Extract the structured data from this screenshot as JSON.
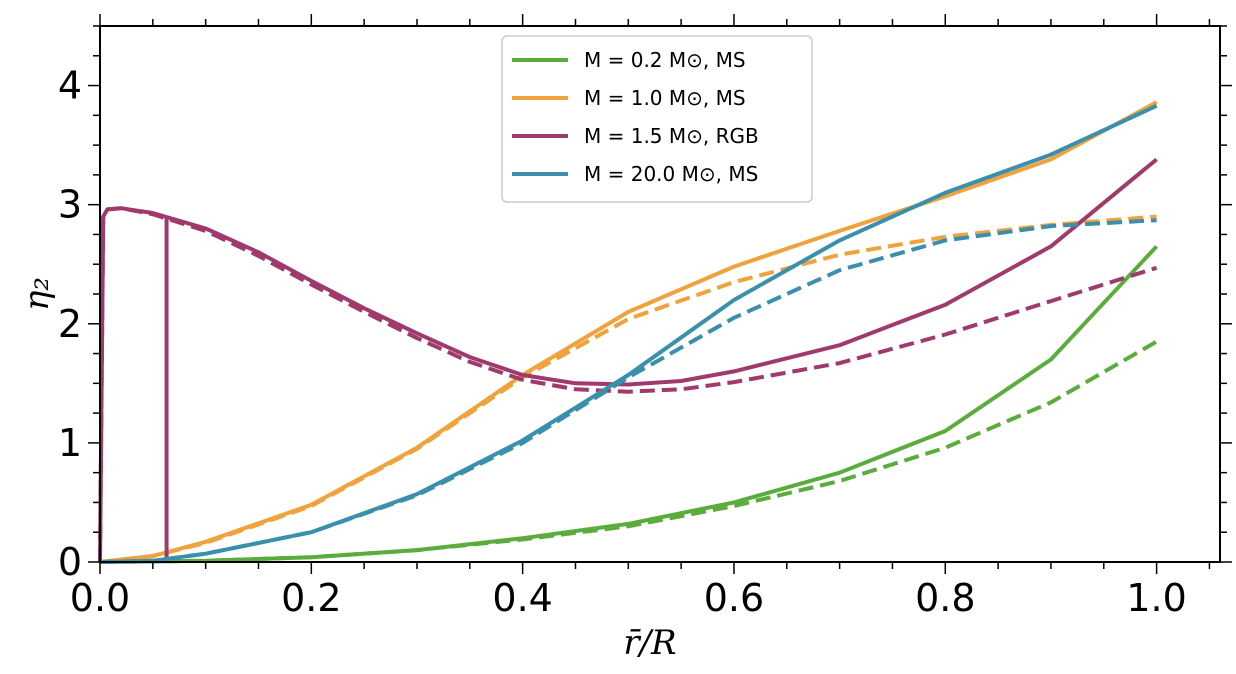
{
  "chart_data": {
    "type": "line",
    "xlabel": "r̄/R",
    "ylabel": "η₂",
    "xlim": [
      0.0,
      1.06
    ],
    "ylim": [
      0.0,
      4.5
    ],
    "x_ticks": [
      "0.0",
      "0.2",
      "0.4",
      "0.6",
      "0.8",
      "1.0"
    ],
    "y_ticks": [
      "0",
      "1",
      "2",
      "3",
      "4"
    ],
    "grid": false,
    "legend_position": "top-center",
    "series": [
      {
        "name": "M = 0.2 M⊙, MS",
        "color": "#5aad3c",
        "solid": {
          "x": [
            0.0,
            0.1,
            0.2,
            0.3,
            0.4,
            0.5,
            0.6,
            0.7,
            0.8,
            0.9,
            1.0
          ],
          "y": [
            0.0,
            0.01,
            0.04,
            0.1,
            0.2,
            0.32,
            0.5,
            0.75,
            1.1,
            1.7,
            2.65
          ]
        },
        "dashed": {
          "x": [
            0.0,
            0.1,
            0.2,
            0.3,
            0.4,
            0.5,
            0.6,
            0.7,
            0.8,
            0.9,
            1.0
          ],
          "y": [
            0.0,
            0.01,
            0.04,
            0.1,
            0.19,
            0.3,
            0.47,
            0.68,
            0.96,
            1.34,
            1.85
          ]
        }
      },
      {
        "name": "M = 1.0 M⊙, MS",
        "color": "#f0a23c",
        "solid": {
          "x": [
            0.0,
            0.05,
            0.1,
            0.2,
            0.3,
            0.4,
            0.5,
            0.6,
            0.7,
            0.8,
            0.9,
            1.0
          ],
          "y": [
            0.0,
            0.05,
            0.17,
            0.48,
            0.96,
            1.57,
            2.1,
            2.48,
            2.78,
            3.07,
            3.38,
            3.86
          ]
        },
        "dashed": {
          "x": [
            0.0,
            0.05,
            0.1,
            0.2,
            0.3,
            0.4,
            0.5,
            0.6,
            0.7,
            0.8,
            0.9,
            1.0
          ],
          "y": [
            0.0,
            0.05,
            0.16,
            0.47,
            0.95,
            1.55,
            2.04,
            2.35,
            2.58,
            2.73,
            2.83,
            2.9
          ]
        }
      },
      {
        "name": "M = 1.5 M⊙, RGB",
        "color": "#a03a6c",
        "solid": {
          "x": [
            0.0,
            0.003,
            0.007,
            0.02,
            0.05,
            0.1,
            0.15,
            0.2,
            0.25,
            0.3,
            0.35,
            0.4,
            0.45,
            0.5,
            0.55,
            0.6,
            0.7,
            0.8,
            0.9,
            1.0
          ],
          "y": [
            0.0,
            2.9,
            2.96,
            2.97,
            2.93,
            2.8,
            2.6,
            2.36,
            2.13,
            1.92,
            1.72,
            1.57,
            1.5,
            1.49,
            1.52,
            1.6,
            1.82,
            2.16,
            2.65,
            3.38
          ]
        },
        "dashed": {
          "x": [
            0.0,
            0.003,
            0.007,
            0.02,
            0.05,
            0.1,
            0.15,
            0.2,
            0.25,
            0.3,
            0.35,
            0.4,
            0.45,
            0.5,
            0.55,
            0.6,
            0.7,
            0.8,
            0.9,
            1.0
          ],
          "y": [
            0.0,
            2.9,
            2.96,
            2.97,
            2.92,
            2.78,
            2.57,
            2.33,
            2.1,
            1.88,
            1.68,
            1.53,
            1.45,
            1.43,
            1.45,
            1.51,
            1.67,
            1.91,
            2.19,
            2.47
          ]
        },
        "spike_x": 0.063
      },
      {
        "name": "M = 20.0 M⊙, MS",
        "color": "#3a8fad",
        "solid": {
          "x": [
            0.0,
            0.05,
            0.1,
            0.2,
            0.3,
            0.4,
            0.5,
            0.6,
            0.7,
            0.8,
            0.9,
            1.0
          ],
          "y": [
            0.0,
            0.01,
            0.07,
            0.25,
            0.57,
            1.02,
            1.57,
            2.2,
            2.7,
            3.1,
            3.42,
            3.83
          ]
        },
        "dashed": {
          "x": [
            0.0,
            0.05,
            0.1,
            0.2,
            0.3,
            0.4,
            0.5,
            0.6,
            0.7,
            0.8,
            0.9,
            1.0
          ],
          "y": [
            0.0,
            0.01,
            0.07,
            0.25,
            0.56,
            1.0,
            1.55,
            2.05,
            2.45,
            2.7,
            2.82,
            2.87
          ]
        }
      }
    ]
  }
}
